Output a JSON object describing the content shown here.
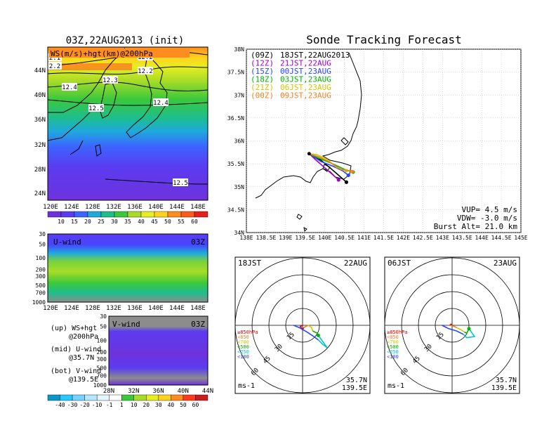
{
  "left": {
    "title": "03Z,22AUG2013 (init)",
    "map_label": "WS(m/s)+hgt(km)@200hPa",
    "lat_labels": [
      "44N",
      "40N",
      "36N",
      "32N",
      "28N",
      "24N"
    ],
    "lon_labels": [
      "120E",
      "124E",
      "128E",
      "132E",
      "136E",
      "140E",
      "144E",
      "148E"
    ],
    "contour_labels": [
      "12.2",
      "12.2",
      "12.3",
      "12.4",
      "12.4",
      "12.5",
      "12.5",
      "2.1",
      "2.2"
    ],
    "ws_colorbar": [
      "10",
      "15",
      "20",
      "25",
      "30",
      "35",
      "40",
      "45",
      "50",
      "55",
      "60"
    ],
    "uwind": {
      "label": "U-wind",
      "time": "03Z",
      "p_labels": [
        "30",
        "50",
        "100",
        "200",
        "300",
        "500",
        "700",
        "1000"
      ]
    },
    "vwind": {
      "label": "V-wind",
      "time": "03Z",
      "p_labels": [
        "30",
        "50",
        "100",
        "200",
        "300",
        "500",
        "700",
        "1000"
      ],
      "lat_labels": [
        "28N",
        "32N",
        "36N",
        "40N",
        "44N"
      ]
    },
    "legend": [
      {
        "a": "(up) WS+hgt",
        "b": "@200hPa"
      },
      {
        "a": "(mid) U-wind",
        "b": "@35.7N"
      },
      {
        "a": "(bot) V-wind",
        "b": "@139.5E"
      }
    ],
    "wind_colorbar": [
      "-40",
      "-30",
      "-20",
      "-10",
      "-1",
      "1",
      "10",
      "20",
      "30",
      "40",
      "50",
      "60"
    ]
  },
  "right": {
    "title": "Sonde Tracking Forecast",
    "lat_labels": [
      "38N",
      "37.5N",
      "37N",
      "36.5N",
      "36N",
      "35.5N",
      "35N",
      "34.5N",
      "34N"
    ],
    "lon_labels": [
      "138E",
      "138.5E",
      "139E",
      "139.5E",
      "140E",
      "140.5E",
      "141E",
      "141.5E",
      "142E",
      "142.5E",
      "143E",
      "143.5E",
      "144E",
      "144.5E",
      "145E"
    ],
    "tracks": [
      {
        "tag": "(09Z)",
        "when": "18JST,22AUG2013",
        "color": "#000000"
      },
      {
        "tag": "(12Z)",
        "when": "21JST,22AUG",
        "color": "#a000c8"
      },
      {
        "tag": "(15Z)",
        "when": "00JST,23AUG",
        "color": "#2846ff"
      },
      {
        "tag": "(18Z)",
        "when": "03JST,23AUG",
        "color": "#00b400"
      },
      {
        "tag": "(21Z)",
        "when": "06JST,23AUG",
        "color": "#d2c800"
      },
      {
        "tag": "(00Z)",
        "when": "09JST,23AUG",
        "color": "#f08228"
      }
    ],
    "params": [
      "VUP=  4.5 m/s",
      "VDW= -3.0 m/s",
      "Burst Alt= 21.0 km"
    ],
    "hodographs": [
      {
        "time": "18JST",
        "date": "22AUG",
        "loc1": "35.7N",
        "loc2": "139.5E",
        "unit": "ms-1",
        "rings": [
          "15",
          "30",
          "45",
          "60"
        ]
      },
      {
        "time": "06JST",
        "date": "23AUG",
        "loc1": "35.7N",
        "loc2": "139.5E",
        "unit": "ms-1",
        "rings": [
          "15",
          "30",
          "45",
          "60"
        ]
      }
    ],
    "levels": [
      {
        "label": "≥850hPa",
        "color": "#e60000"
      },
      {
        "label": "<850",
        "color": "#f08228"
      },
      {
        "label": "<700",
        "color": "#d2c800"
      },
      {
        "label": "<500",
        "color": "#00b400"
      },
      {
        "label": "<250",
        "color": "#00c8c8"
      },
      {
        "label": "<100",
        "color": "#2846ff"
      }
    ]
  },
  "chart_data": [
    {
      "type": "heatmap",
      "title": "03Z,22AUG2013 (init)",
      "label": "WS(m/s)+hgt(km)@200hPa",
      "x_ticks": [
        "120E",
        "124E",
        "128E",
        "132E",
        "136E",
        "140E",
        "144E",
        "148E"
      ],
      "y_ticks": [
        "44N",
        "40N",
        "36N",
        "32N",
        "28N",
        "24N"
      ],
      "colorbar": [
        10,
        15,
        20,
        25,
        30,
        35,
        40,
        45,
        50,
        55,
        60
      ],
      "contour_labels": [
        12.2,
        12.3,
        12.4,
        12.5
      ]
    },
    {
      "type": "heatmap",
      "label": "U-wind",
      "x_ticks": [
        "120E",
        "124E",
        "128E",
        "132E",
        "136E",
        "140E",
        "144E",
        "148E"
      ],
      "y_ticks": [
        30,
        50,
        100,
        200,
        300,
        500,
        700,
        1000
      ]
    },
    {
      "type": "heatmap",
      "label": "V-wind",
      "x_ticks": [
        "28N",
        "32N",
        "36N",
        "40N",
        "44N"
      ],
      "y_ticks": [
        30,
        50,
        100,
        200,
        300,
        500,
        700,
        1000
      ],
      "colorbar": [
        -40,
        -30,
        -20,
        -10,
        -1,
        1,
        10,
        20,
        30,
        40,
        50,
        60
      ]
    },
    {
      "type": "line",
      "title": "Sonde Tracking Forecast",
      "xlim": [
        138,
        145
      ],
      "ylim": [
        34,
        38
      ],
      "launch": [
        139.6,
        35.72
      ],
      "series": [
        {
          "name": "(09Z) 18JST,22AUG2013",
          "color": "#000000",
          "x": [
            139.6,
            139.9,
            140.15,
            140.35,
            140.55
          ],
          "y": [
            35.72,
            35.58,
            35.4,
            35.25,
            35.1
          ]
        },
        {
          "name": "(12Z) 21JST,22AUG",
          "color": "#a000c8",
          "x": [
            139.6,
            139.75,
            139.95,
            140.15,
            140.35
          ],
          "y": [
            35.72,
            35.6,
            35.45,
            35.3,
            35.15
          ]
        },
        {
          "name": "(15Z) 00JST,23AUG",
          "color": "#2846ff",
          "x": [
            139.6,
            139.9,
            140.2,
            140.45,
            140.6
          ],
          "y": [
            35.72,
            35.55,
            35.45,
            35.35,
            35.25
          ]
        },
        {
          "name": "(18Z) 03JST,23AUG",
          "color": "#00b400",
          "x": [
            139.6,
            139.85,
            140.2,
            140.5,
            140.72
          ],
          "y": [
            35.72,
            35.62,
            35.5,
            35.38,
            35.32
          ]
        },
        {
          "name": "(21Z) 06JST,23AUG",
          "color": "#d2c800",
          "x": [
            139.6,
            139.8,
            140.05,
            140.3,
            140.55
          ],
          "y": [
            35.72,
            35.7,
            35.6,
            35.42,
            35.35
          ]
        },
        {
          "name": "(00Z) 09JST,23AUG",
          "color": "#f08228",
          "x": [
            139.6,
            139.85,
            140.1,
            140.4,
            140.7
          ],
          "y": [
            35.72,
            35.65,
            35.55,
            35.38,
            35.33
          ]
        }
      ]
    },
    {
      "type": "line",
      "title": "18JST 22AUG",
      "unit": "ms-1",
      "series": [
        {
          "name": "≥850hPa",
          "color": "#e60000",
          "x": [
            0,
            -2,
            0,
            1
          ],
          "y": [
            0,
            -1,
            -4,
            -2
          ]
        },
        {
          "name": "<850",
          "color": "#f08228",
          "x": [
            1,
            3,
            5
          ],
          "y": [
            -2,
            -1,
            0
          ]
        },
        {
          "name": "<700",
          "color": "#d2c800",
          "x": [
            5,
            8,
            9
          ],
          "y": [
            0,
            -2,
            -5
          ]
        },
        {
          "name": "<500",
          "color": "#00b400",
          "x": [
            9,
            13,
            14
          ],
          "y": [
            -5,
            -7,
            -9
          ]
        },
        {
          "name": "<250",
          "color": "#00c8c8",
          "x": [
            14,
            22,
            18,
            14
          ],
          "y": [
            -9,
            -20,
            -17,
            -13
          ]
        },
        {
          "name": "<100",
          "color": "#2846ff",
          "x": [
            14,
            10,
            4,
            -3,
            -8
          ],
          "y": [
            -13,
            -10,
            -6,
            -2,
            0
          ]
        }
      ]
    },
    {
      "type": "line",
      "title": "06JST 23AUG",
      "unit": "ms-1",
      "series": [
        {
          "name": "≥850hPa",
          "color": "#e60000",
          "x": [
            0,
            -1,
            -2
          ],
          "y": [
            0,
            1,
            0
          ]
        },
        {
          "name": "<850",
          "color": "#f08228",
          "x": [
            -2,
            2,
            4
          ],
          "y": [
            0,
            -1,
            -2
          ]
        },
        {
          "name": "<700",
          "color": "#d2c800",
          "x": [
            4,
            8,
            11
          ],
          "y": [
            -2,
            -4,
            -6
          ]
        },
        {
          "name": "<500",
          "color": "#00b400",
          "x": [
            11,
            13,
            15
          ],
          "y": [
            -6,
            -7,
            -3
          ]
        },
        {
          "name": "<250",
          "color": "#00c8c8",
          "x": [
            15,
            20,
            13,
            10
          ],
          "y": [
            -3,
            -10,
            -11,
            -8
          ]
        },
        {
          "name": "<100",
          "color": "#2846ff",
          "x": [
            10,
            4,
            -3,
            -9
          ],
          "y": [
            -8,
            -5,
            -3,
            0
          ]
        }
      ]
    }
  ]
}
